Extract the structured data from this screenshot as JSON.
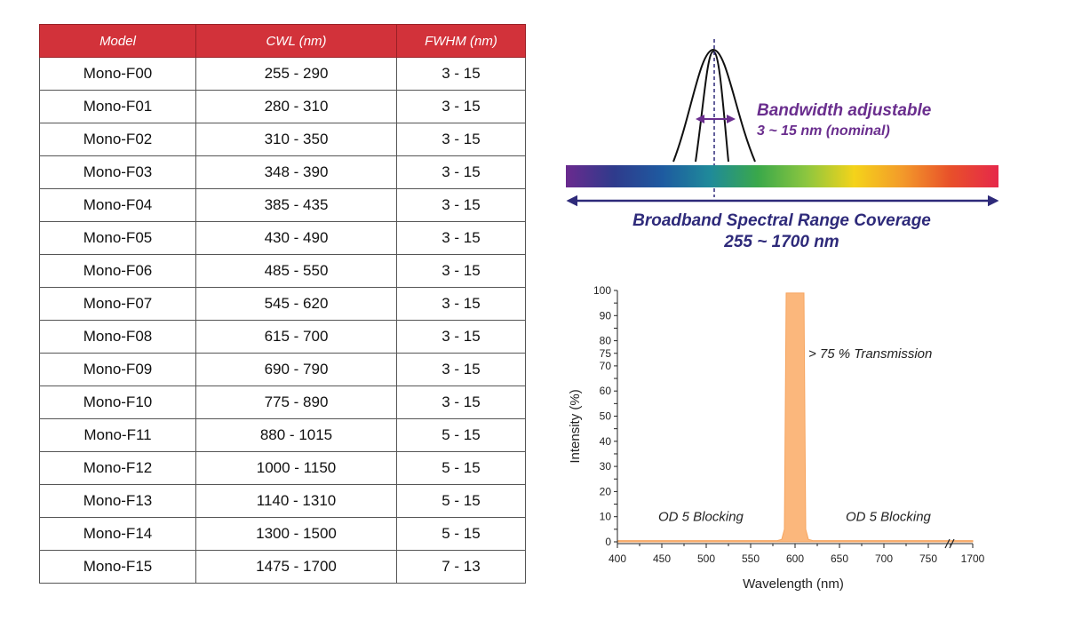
{
  "table": {
    "headers": [
      "Model",
      "CWL (nm)",
      "FWHM (nm)"
    ],
    "header_color": "#d2323a",
    "rows": [
      [
        "Mono-F00",
        "255 - 290",
        "3 - 15"
      ],
      [
        "Mono-F01",
        "280 - 310",
        "3 - 15"
      ],
      [
        "Mono-F02",
        "310 - 350",
        "3 - 15"
      ],
      [
        "Mono-F03",
        "348 - 390",
        "3 - 15"
      ],
      [
        "Mono-F04",
        "385 - 435",
        "3 - 15"
      ],
      [
        "Mono-F05",
        "430 - 490",
        "3 - 15"
      ],
      [
        "Mono-F06",
        "485 - 550",
        "3 - 15"
      ],
      [
        "Mono-F07",
        "545 - 620",
        "3 - 15"
      ],
      [
        "Mono-F08",
        "615 - 700",
        "3 - 15"
      ],
      [
        "Mono-F09",
        "690 - 790",
        "3 - 15"
      ],
      [
        "Mono-F10",
        "775 - 890",
        "3 - 15"
      ],
      [
        "Mono-F11",
        "880 - 1015",
        "5 - 15"
      ],
      [
        "Mono-F12",
        "1000 - 1150",
        "5 - 15"
      ],
      [
        "Mono-F13",
        "1140 - 1310",
        "5 - 15"
      ],
      [
        "Mono-F14",
        "1300 - 1500",
        "5 - 15"
      ],
      [
        "Mono-F15",
        "1475 - 1700",
        "7 - 13"
      ]
    ]
  },
  "spectrum": {
    "bandwidth_title": "Bandwidth adjustable",
    "bandwidth_subtitle": "3 ~ 15 nm (nominal)",
    "range_title": "Broadband Spectral Range Coverage",
    "range_subtitle": "255 ~ 1700 nm",
    "bandwidth_color": "#6a2e8e",
    "range_color": "#2e2a7a",
    "gradient_colors": [
      "#6a2a8e",
      "#2f3b8c",
      "#1e5aa0",
      "#1f8a9a",
      "#3aa84a",
      "#8cc63f",
      "#f4d31a",
      "#f39a2a",
      "#e8502a",
      "#e6284a"
    ]
  },
  "chart_data": {
    "type": "area",
    "xlabel": "Wavelength (nm)",
    "ylabel": "Intensity (%)",
    "x_ticks": [
      "400",
      "450",
      "500",
      "550",
      "600",
      "650",
      "700",
      "750",
      "1700"
    ],
    "y_ticks": [
      0,
      10,
      20,
      30,
      40,
      50,
      60,
      70,
      75,
      80,
      90,
      100
    ],
    "xlim": [
      400,
      800
    ],
    "ylim": [
      0,
      100
    ],
    "axis_break_near": 775,
    "fill_color": "#fbb77c",
    "series": [
      {
        "x": [
          400,
          580,
          585,
          588,
          590,
          610,
          612,
          615,
          620,
          800
        ],
        "values": [
          0.5,
          0.5,
          1,
          5,
          99,
          99,
          5,
          1,
          0.5,
          0.5
        ]
      }
    ],
    "annotations": [
      {
        "text": "> 75 % Transmission",
        "x": 615,
        "y": 75
      },
      {
        "text": "OD 5 Blocking",
        "x": 446,
        "y": 10
      },
      {
        "text": "OD 5 Blocking",
        "x": 657,
        "y": 10
      }
    ],
    "grid": false
  }
}
